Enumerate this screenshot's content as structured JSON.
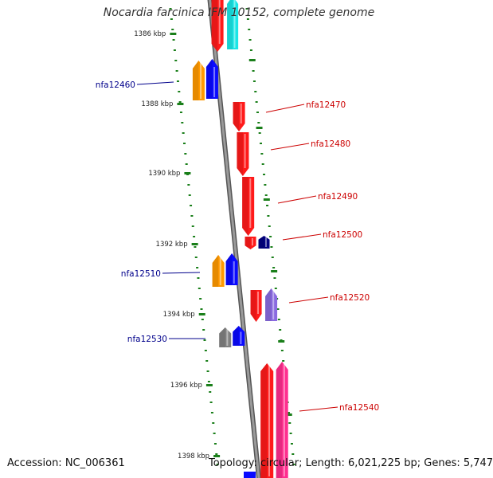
{
  "title": "Nocardia farcinica IFM 10152, complete genome",
  "accession": "Accession: NC_006361",
  "summary": "Topology: circular; Length: 6,021,225 bp; Genes: 5,747",
  "colors": {
    "backbone": "#8a8a8a",
    "tick": "#1a7f1a",
    "label_left": "#00008b",
    "label_right": "#cc0000",
    "red": "#ff1a1a",
    "cyan": "#19e6e6",
    "orange": "#ff9900",
    "blue": "#0a0aff",
    "navy": "#000080",
    "purple": "#8a6ae0",
    "gray": "#808080",
    "pink": "#ff2f8f"
  },
  "scale_labels": [
    "1386 kbp",
    "1388 kbp",
    "1390 kbp",
    "1392 kbp",
    "1394 kbp",
    "1396 kbp",
    "1398 kbp"
  ],
  "genes_left": [
    {
      "label": "nfa12460",
      "color": "orange",
      "pair": "blue"
    },
    {
      "label": "nfa12510",
      "color": "orange",
      "pair": "blue"
    },
    {
      "label": "nfa12530",
      "color": "gray",
      "pair": "blue"
    }
  ],
  "genes_right": [
    {
      "label": "nfa12470",
      "color": "red"
    },
    {
      "label": "nfa12480",
      "color": "red"
    },
    {
      "label": "nfa12490",
      "color": "red"
    },
    {
      "label": "nfa12500",
      "color": "red",
      "pair": "navy"
    },
    {
      "label": "nfa12520",
      "color": "red",
      "pair": "purple"
    },
    {
      "label": "nfa12540",
      "color": "red",
      "pair": "pink"
    }
  ]
}
